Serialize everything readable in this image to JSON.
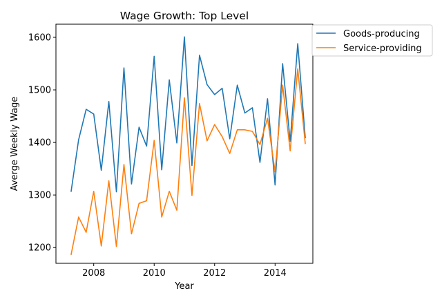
{
  "chart_data": {
    "type": "line",
    "title": "Wage Growth: Top Level",
    "xlabel": "Year",
    "ylabel": "Averge Weekly Wage",
    "xlim": [
      2006.75,
      2015.25
    ],
    "ylim": [
      1170,
      1625
    ],
    "xticks": [
      2008,
      2010,
      2012,
      2014
    ],
    "yticks": [
      1200,
      1300,
      1400,
      1500,
      1600
    ],
    "grid": false,
    "legend_position": "outside top-right",
    "x": [
      2007.25,
      2007.5,
      2007.75,
      2008.0,
      2008.25,
      2008.5,
      2008.75,
      2009.0,
      2009.25,
      2009.5,
      2009.75,
      2010.0,
      2010.25,
      2010.5,
      2010.75,
      2011.0,
      2011.25,
      2011.5,
      2011.75,
      2012.0,
      2012.25,
      2012.5,
      2012.75,
      2013.0,
      2013.25,
      2013.5,
      2013.75,
      2014.0,
      2014.25,
      2014.5,
      2014.75,
      2015.0
    ],
    "series": [
      {
        "name": "Goods-producing",
        "color": "#1f77b4",
        "values": [
          1306,
          1405,
          1463,
          1454,
          1347,
          1478,
          1306,
          1542,
          1321,
          1429,
          1393,
          1564,
          1348,
          1519,
          1399,
          1601,
          1356,
          1566,
          1510,
          1491,
          1503,
          1407,
          1509,
          1456,
          1466,
          1362,
          1483,
          1319,
          1550,
          1402,
          1588,
          1408
        ]
      },
      {
        "name": "Service-providing",
        "color": "#ff7f0e",
        "values": [
          1186,
          1258,
          1229,
          1307,
          1203,
          1327,
          1202,
          1358,
          1226,
          1284,
          1289,
          1404,
          1258,
          1307,
          1271,
          1485,
          1299,
          1474,
          1403,
          1434,
          1411,
          1379,
          1424,
          1424,
          1421,
          1396,
          1446,
          1344,
          1509,
          1384,
          1540,
          1397
        ]
      }
    ]
  }
}
